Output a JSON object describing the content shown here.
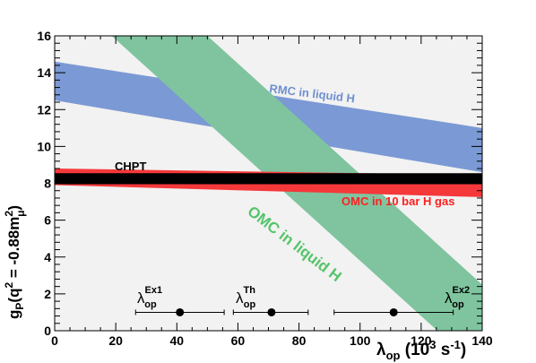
{
  "chart_data": {
    "type": "area",
    "xlim": [
      0,
      140
    ],
    "ylim": [
      0,
      16
    ],
    "xticks": [
      0,
      20,
      40,
      60,
      80,
      100,
      120,
      140
    ],
    "yticks": [
      0,
      2,
      4,
      6,
      8,
      10,
      12,
      14,
      16
    ],
    "xlabel": {
      "main": "λ",
      "sub": "op",
      "rest": " (10",
      "sup": "3",
      "rest2": " s",
      "sup2": "-1",
      "close": ")"
    },
    "ylabel": {
      "main": "g",
      "sub": "P",
      "rest": "(q",
      "sup": "2",
      "rest2": " = -0.88m",
      "sup2": "2",
      "sub2": "μ",
      "close": ")"
    },
    "grid": false,
    "colors": {
      "background": "#f2f2f2",
      "rmc": "#7b99d4",
      "rmc_text": "#6f8fcf",
      "omc_liquid": "#7fc49f",
      "omc_liquid_text": "#55c46a",
      "omc_gas": "#f5383a",
      "omc_gas_text": "#ff1e1e",
      "chpt": "#000000"
    },
    "bands": [
      {
        "name": "RMC in liquid H",
        "lower": [
          [
            0,
            12.5
          ],
          [
            140,
            8.6
          ]
        ],
        "upper": [
          [
            0,
            14.6
          ],
          [
            140,
            11.0
          ]
        ]
      },
      {
        "name": "OMC in liquid H",
        "lower": [
          [
            0,
            18.8
          ],
          [
            140,
            -2.2
          ]
        ],
        "upper": [
          [
            0,
            23.5
          ],
          [
            140,
            2.5
          ]
        ]
      },
      {
        "name": "OMC in 10 bar H gas",
        "lower": [
          [
            0,
            7.9
          ],
          [
            140,
            7.25
          ]
        ],
        "upper": [
          [
            0,
            8.8
          ],
          [
            140,
            8.45
          ]
        ]
      },
      {
        "name": "CHPT",
        "lower": [
          [
            0,
            7.95
          ],
          [
            140,
            7.95
          ]
        ],
        "upper": [
          [
            0,
            8.55
          ],
          [
            140,
            8.55
          ]
        ]
      }
    ],
    "points": [
      {
        "name": "λ_op^Ex1",
        "base": "λ",
        "sub": "op",
        "sup": "Ex1",
        "x": 41,
        "y": 1.0,
        "xerr": [
          26.5,
          55.5
        ]
      },
      {
        "name": "λ_op^Th",
        "base": "λ",
        "sub": "op",
        "sup": "Th",
        "x": 71,
        "y": 1.0,
        "xerr": [
          58.5,
          83
        ]
      },
      {
        "name": "λ_op^Ex2",
        "base": "λ",
        "sub": "op",
        "sup": "Ex2",
        "x": 111,
        "y": 1.0,
        "xerr": [
          91.5,
          130.5
        ]
      }
    ]
  }
}
